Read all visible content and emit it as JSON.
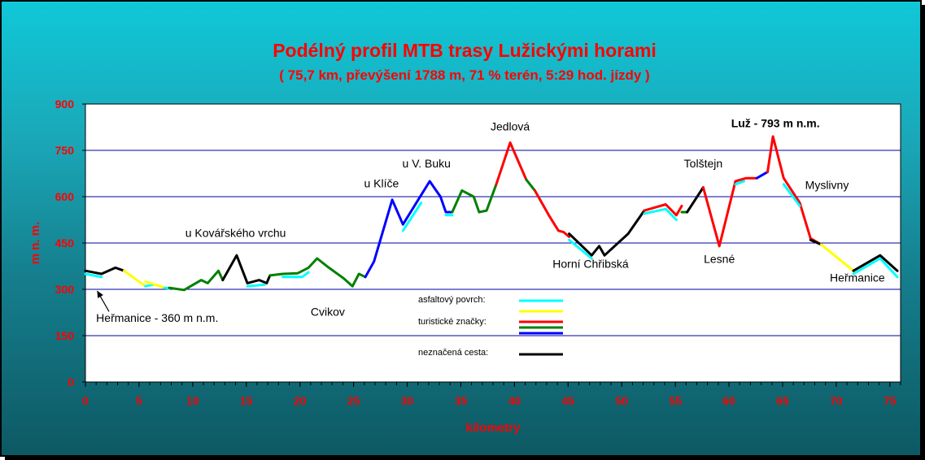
{
  "chart_data": {
    "type": "line",
    "title": "Podélný profil MTB trasy Lužickými horami",
    "subtitle": "( 75,7 km, převýšení 1788 m, 71 % terén, 5:29 hod. jízdy )",
    "xlabel": "kilometry",
    "ylabel": "m n. m.",
    "xlim": [
      0,
      76
    ],
    "ylim": [
      0,
      900
    ],
    "xticks": [
      0,
      5,
      10,
      15,
      20,
      25,
      30,
      35,
      40,
      45,
      50,
      55,
      60,
      65,
      70,
      75
    ],
    "yticks": [
      0,
      150,
      300,
      450,
      600,
      750,
      900
    ],
    "grid": "horizontal",
    "colors": {
      "cyan": "#00ffff",
      "yellow": "#ffff00",
      "red": "#ff0000",
      "green": "#008000",
      "blue": "#0000ff",
      "black": "#000000",
      "title": "#ff0000",
      "plot_bg": "#ffffff",
      "grid": "#0000a0"
    },
    "segments": [
      {
        "color": "cyan",
        "points": [
          [
            0,
            350
          ],
          [
            1.5,
            340
          ]
        ]
      },
      {
        "color": "black",
        "points": [
          [
            0,
            360
          ],
          [
            1.5,
            350
          ],
          [
            2.8,
            370
          ],
          [
            3.6,
            360
          ]
        ]
      },
      {
        "color": "yellow",
        "points": [
          [
            3.6,
            360
          ],
          [
            5.6,
            310
          ]
        ]
      },
      {
        "color": "cyan",
        "points": [
          [
            5.6,
            310
          ],
          [
            6.3,
            315
          ]
        ]
      },
      {
        "color": "yellow",
        "points": [
          [
            5.6,
            325
          ],
          [
            7.4,
            305
          ]
        ]
      },
      {
        "color": "cyan",
        "points": [
          [
            7.4,
            305
          ],
          [
            7.8,
            302
          ]
        ]
      },
      {
        "color": "green",
        "points": [
          [
            7.8,
            305
          ],
          [
            9.2,
            298
          ],
          [
            10.8,
            330
          ],
          [
            11.4,
            320
          ],
          [
            12.4,
            360
          ],
          [
            12.8,
            330
          ]
        ]
      },
      {
        "color": "black",
        "points": [
          [
            12.8,
            330
          ],
          [
            14.1,
            410
          ],
          [
            15.1,
            320
          ],
          [
            16.2,
            330
          ],
          [
            16.9,
            320
          ],
          [
            17.2,
            345
          ]
        ]
      },
      {
        "color": "cyan",
        "points": [
          [
            15.1,
            310
          ],
          [
            16.7,
            315
          ]
        ]
      },
      {
        "color": "green",
        "points": [
          [
            17.2,
            345
          ],
          [
            18.4,
            350
          ],
          [
            19.8,
            352
          ],
          [
            20.8,
            370
          ],
          [
            21.6,
            400
          ],
          [
            22.7,
            370
          ],
          [
            24.1,
            335
          ],
          [
            24.9,
            310
          ],
          [
            25.5,
            350
          ],
          [
            26.1,
            340
          ]
        ]
      },
      {
        "color": "cyan",
        "points": [
          [
            18.4,
            340
          ],
          [
            20.2,
            340
          ],
          [
            20.8,
            355
          ]
        ]
      },
      {
        "color": "blue",
        "points": [
          [
            26.1,
            340
          ],
          [
            26.9,
            390
          ],
          [
            28.6,
            590
          ],
          [
            29.6,
            510
          ],
          [
            32.1,
            650
          ],
          [
            33.1,
            600
          ],
          [
            33.6,
            550
          ],
          [
            34.2,
            550
          ]
        ]
      },
      {
        "color": "cyan",
        "points": [
          [
            29.6,
            490
          ],
          [
            31.3,
            580
          ]
        ]
      },
      {
        "color": "cyan",
        "points": [
          [
            33.6,
            540
          ],
          [
            34.2,
            540
          ]
        ]
      },
      {
        "color": "green",
        "points": [
          [
            34.2,
            550
          ],
          [
            35.1,
            620
          ],
          [
            36.2,
            600
          ],
          [
            36.7,
            550
          ],
          [
            37.4,
            555
          ],
          [
            38.3,
            640
          ]
        ]
      },
      {
        "color": "red",
        "points": [
          [
            38.3,
            640
          ],
          [
            39.6,
            775
          ],
          [
            41.1,
            655
          ]
        ]
      },
      {
        "color": "green",
        "points": [
          [
            41.1,
            655
          ],
          [
            41.9,
            620
          ]
        ]
      },
      {
        "color": "red",
        "points": [
          [
            41.9,
            620
          ],
          [
            43.2,
            540
          ],
          [
            44.1,
            490
          ],
          [
            44.6,
            485
          ],
          [
            45.1,
            470
          ]
        ]
      },
      {
        "color": "cyan",
        "points": [
          [
            45.1,
            460
          ],
          [
            47.2,
            400
          ]
        ]
      },
      {
        "color": "black",
        "points": [
          [
            45.1,
            480
          ],
          [
            47.2,
            410
          ],
          [
            47.9,
            440
          ],
          [
            48.4,
            410
          ],
          [
            50.6,
            480
          ],
          [
            52.1,
            555
          ]
        ]
      },
      {
        "color": "cyan",
        "points": [
          [
            52.1,
            545
          ],
          [
            54.1,
            560
          ],
          [
            55.1,
            525
          ]
        ]
      },
      {
        "color": "red",
        "points": [
          [
            52.1,
            555
          ],
          [
            54.1,
            575
          ],
          [
            55.1,
            540
          ],
          [
            55.6,
            570
          ]
        ]
      },
      {
        "color": "green",
        "points": [
          [
            55.6,
            550
          ],
          [
            56.1,
            550
          ]
        ]
      },
      {
        "color": "black",
        "points": [
          [
            56.1,
            550
          ],
          [
            57.6,
            630
          ]
        ]
      },
      {
        "color": "red",
        "points": [
          [
            57.6,
            630
          ],
          [
            59.1,
            440
          ],
          [
            60.6,
            650
          ],
          [
            61.6,
            660
          ],
          [
            62.6,
            660
          ]
        ]
      },
      {
        "color": "cyan",
        "points": [
          [
            60.6,
            640
          ],
          [
            61.4,
            650
          ]
        ]
      },
      {
        "color": "blue",
        "points": [
          [
            62.6,
            660
          ],
          [
            63.6,
            680
          ]
        ]
      },
      {
        "color": "red",
        "points": [
          [
            63.6,
            680
          ],
          [
            64.1,
            795
          ],
          [
            65.1,
            660
          ],
          [
            66.6,
            580
          ],
          [
            67.6,
            465
          ],
          [
            68.6,
            445
          ]
        ]
      },
      {
        "color": "cyan",
        "points": [
          [
            65.1,
            640
          ],
          [
            66.6,
            570
          ]
        ]
      },
      {
        "color": "black",
        "points": [
          [
            67.6,
            460
          ],
          [
            68.6,
            445
          ]
        ]
      },
      {
        "color": "yellow",
        "points": [
          [
            68.6,
            445
          ],
          [
            71.6,
            360
          ]
        ]
      },
      {
        "color": "cyan",
        "points": [
          [
            71.6,
            350
          ],
          [
            74.1,
            400
          ],
          [
            75.7,
            340
          ]
        ]
      },
      {
        "color": "black",
        "points": [
          [
            71.6,
            360
          ],
          [
            74.1,
            410
          ],
          [
            75.7,
            360
          ]
        ]
      }
    ],
    "annotations": [
      {
        "id": "hermanice-start",
        "text": "Heřmanice - 360 m n.m.",
        "x": 1.0,
        "y": 195,
        "anchor": "start",
        "bold": false
      },
      {
        "id": "kovarsky",
        "text": "u Kovářského vrchu",
        "x": 14.0,
        "y": 470,
        "anchor": "middle",
        "bold": false
      },
      {
        "id": "cvikov",
        "text": "Cvikov",
        "x": 21.0,
        "y": 215,
        "anchor": "start",
        "bold": false
      },
      {
        "id": "klice",
        "text": "u Klíče",
        "x": 27.6,
        "y": 630,
        "anchor": "middle",
        "bold": false
      },
      {
        "id": "vbuku",
        "text": "u V. Buku",
        "x": 31.8,
        "y": 695,
        "anchor": "middle",
        "bold": false
      },
      {
        "id": "jedlova",
        "text": "Jedlová",
        "x": 39.6,
        "y": 815,
        "anchor": "middle",
        "bold": false
      },
      {
        "id": "horni-chribska",
        "text": "Horní Chřibská",
        "x": 47.1,
        "y": 370,
        "anchor": "middle",
        "bold": false
      },
      {
        "id": "tolstejn",
        "text": "Tolštejn",
        "x": 57.6,
        "y": 695,
        "anchor": "middle",
        "bold": false
      },
      {
        "id": "luz",
        "text": "Luž - 793 m n.m.",
        "x": 60.2,
        "y": 825,
        "anchor": "start",
        "bold": true
      },
      {
        "id": "lesne",
        "text": "Lesné",
        "x": 59.1,
        "y": 385,
        "anchor": "middle",
        "bold": false
      },
      {
        "id": "myslivny",
        "text": "Myslivny",
        "x": 67.1,
        "y": 625,
        "anchor": "start",
        "bold": false
      },
      {
        "id": "hermanice-end",
        "text": "Heřmanice",
        "x": 69.4,
        "y": 325,
        "anchor": "start",
        "bold": false
      }
    ],
    "legend": [
      {
        "label": "asfaltový povrch:",
        "colors": [
          "cyan",
          "yellow"
        ]
      },
      {
        "label": "turistické značky:",
        "colors": [
          "red",
          "green",
          "blue"
        ]
      },
      {
        "label": "neznačená cesta:",
        "colors": [
          "black"
        ]
      }
    ]
  }
}
